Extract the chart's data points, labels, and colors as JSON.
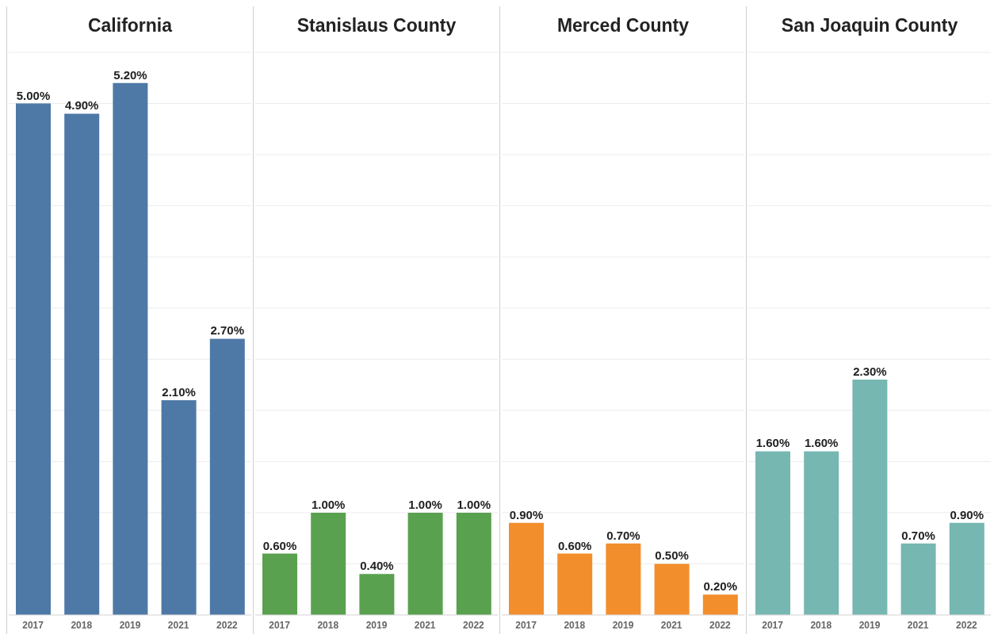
{
  "chart_data": [
    {
      "type": "bar",
      "title": "California",
      "categories": [
        "2017",
        "2018",
        "2019",
        "2021",
        "2022"
      ],
      "series": [
        {
          "color": "#4e79a7",
          "values": [
            5.0,
            4.9,
            5.2,
            2.1,
            2.7
          ],
          "value_labels": [
            "5.00%",
            "4.90%",
            "5.20%",
            "2.10%",
            "2.70%"
          ]
        }
      ],
      "ylim": [
        0,
        5.5
      ],
      "yticks": [
        {
          "value": 0,
          "label": null
        },
        {
          "value": 0.5,
          "label": null
        },
        {
          "value": 1,
          "label": null
        },
        {
          "value": 1.5,
          "label": null
        },
        {
          "value": 2,
          "label": null
        },
        {
          "value": 2.5,
          "label": null
        },
        {
          "value": 3,
          "label": null
        },
        {
          "value": 3.5,
          "label": null
        },
        {
          "value": 4,
          "label": null
        },
        {
          "value": 4.5,
          "label": null
        },
        {
          "value": 5,
          "label": null
        },
        {
          "value": 5.5,
          "label": null
        }
      ],
      "grid": "y",
      "tick_labels": "x"
    },
    {
      "type": "bar",
      "title": "Stanislaus County",
      "categories": [
        "2017",
        "2018",
        "2019",
        "2021",
        "2022"
      ],
      "series": [
        {
          "color": "#59a14f",
          "values": [
            0.6,
            1.0,
            0.4,
            1.0,
            1.0
          ],
          "value_labels": [
            "0.60%",
            "1.00%",
            "0.40%",
            "1.00%",
            "1.00%"
          ]
        }
      ],
      "ylim": [
        0,
        5.5
      ],
      "yticks": [
        {
          "value": 0,
          "label": null
        },
        {
          "value": 0.5,
          "label": null
        },
        {
          "value": 1,
          "label": null
        },
        {
          "value": 1.5,
          "label": null
        },
        {
          "value": 2,
          "label": null
        },
        {
          "value": 2.5,
          "label": null
        },
        {
          "value": 3,
          "label": null
        },
        {
          "value": 3.5,
          "label": null
        },
        {
          "value": 4,
          "label": null
        },
        {
          "value": 4.5,
          "label": null
        },
        {
          "value": 5,
          "label": null
        },
        {
          "value": 5.5,
          "label": null
        }
      ],
      "grid": "y",
      "tick_labels": "x"
    },
    {
      "type": "bar",
      "title": "Merced County",
      "categories": [
        "2017",
        "2018",
        "2019",
        "2021",
        "2022"
      ],
      "series": [
        {
          "color": "#f28e2b",
          "values": [
            0.9,
            0.6,
            0.7,
            0.5,
            0.2
          ],
          "value_labels": [
            "0.90%",
            "0.60%",
            "0.70%",
            "0.50%",
            "0.20%"
          ]
        }
      ],
      "ylim": [
        0,
        5.5
      ],
      "yticks": [
        {
          "value": 0,
          "label": null
        },
        {
          "value": 0.5,
          "label": null
        },
        {
          "value": 1,
          "label": null
        },
        {
          "value": 1.5,
          "label": null
        },
        {
          "value": 2,
          "label": null
        },
        {
          "value": 2.5,
          "label": null
        },
        {
          "value": 3,
          "label": null
        },
        {
          "value": 3.5,
          "label": null
        },
        {
          "value": 4,
          "label": null
        },
        {
          "value": 4.5,
          "label": null
        },
        {
          "value": 5,
          "label": null
        },
        {
          "value": 5.5,
          "label": null
        }
      ],
      "grid": "y",
      "tick_labels": "x"
    },
    {
      "type": "bar",
      "title": "San Joaquin County",
      "categories": [
        "2017",
        "2018",
        "2019",
        "2021",
        "2022"
      ],
      "series": [
        {
          "color": "#76b7b2",
          "values": [
            1.6,
            1.6,
            2.3,
            0.7,
            0.9
          ],
          "value_labels": [
            "1.60%",
            "1.60%",
            "2.30%",
            "0.70%",
            "0.90%"
          ]
        }
      ],
      "ylim": [
        0,
        5.5
      ],
      "yticks": [
        {
          "value": 0,
          "label": null
        },
        {
          "value": 0.5,
          "label": null
        },
        {
          "value": 1,
          "label": null
        },
        {
          "value": 1.5,
          "label": null
        },
        {
          "value": 2,
          "label": null
        },
        {
          "value": 2.5,
          "label": null
        },
        {
          "value": 3,
          "label": null
        },
        {
          "value": 3.5,
          "label": null
        },
        {
          "value": 4,
          "label": null
        },
        {
          "value": 4.5,
          "label": null
        },
        {
          "value": 5,
          "label": null
        },
        {
          "value": 5.5,
          "label": null
        }
      ],
      "grid": "y",
      "tick_labels": "x"
    }
  ]
}
